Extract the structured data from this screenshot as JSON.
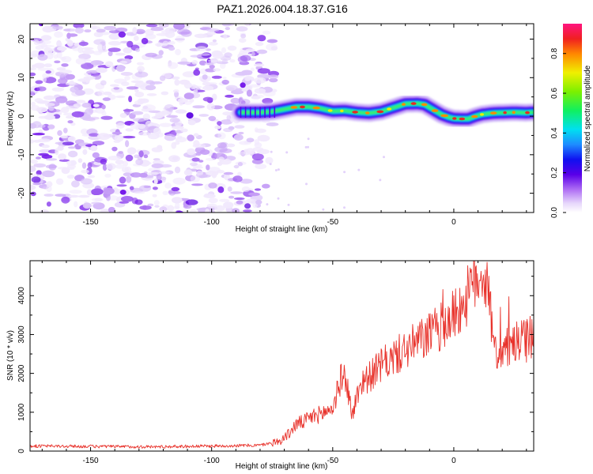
{
  "title": "PAZ1.2026.004.18.37.G16",
  "chart_data": [
    {
      "type": "heatmap",
      "panel": "spectrogram",
      "xlabel": "Height of straight line (km)",
      "ylabel": "Frequency (Hz)",
      "xlim": [
        -175,
        33
      ],
      "ylim": [
        -25,
        24
      ],
      "xticks": [
        -150,
        -100,
        -50,
        0
      ],
      "yticks": [
        -20,
        -10,
        0,
        10,
        20
      ],
      "noise_region_km": [
        -175,
        -78
      ],
      "signal_start_km": -88,
      "signal_track": {
        "x": [
          -88,
          -80,
          -75,
          -70,
          -65,
          -60,
          -55,
          -50,
          -45,
          -40,
          -35,
          -30,
          -25,
          -20,
          -15,
          -12,
          -8,
          -5,
          -2,
          0,
          3,
          6,
          9,
          12,
          16,
          20,
          25,
          30,
          33
        ],
        "freq_hz": [
          1.0,
          1.0,
          1.2,
          1.8,
          2.4,
          2.4,
          2.0,
          1.3,
          1.4,
          1.0,
          0.8,
          1.2,
          2.2,
          3.2,
          3.3,
          3.0,
          1.5,
          0.4,
          -0.3,
          -0.6,
          -0.7,
          -0.7,
          0.0,
          0.5,
          0.8,
          0.9,
          1.0,
          0.9,
          1.0
        ]
      },
      "colorbar": {
        "label": "Normalized spectral amplitude",
        "range": [
          0.0,
          0.95
        ],
        "ticks": [
          "0.0",
          "0.2",
          "0.4",
          "0.6",
          "0.8"
        ]
      }
    },
    {
      "type": "line",
      "panel": "snr",
      "xlabel": "Height of straight line (km)",
      "ylabel": "SNR (10 * v/v)",
      "xlim": [
        -175,
        33
      ],
      "ylim": [
        0,
        4900
      ],
      "xticks": [
        -150,
        -100,
        -50,
        0
      ],
      "yticks": [
        0,
        1000,
        2000,
        3000,
        4000
      ],
      "series": [
        {
          "name": "SNR",
          "color": "#e8312a",
          "x": [
            -175,
            -150,
            -125,
            -100,
            -80,
            -72,
            -68,
            -65,
            -62,
            -58,
            -55,
            -50,
            -46,
            -44,
            -42,
            -40,
            -38,
            -35,
            -30,
            -25,
            -20,
            -15,
            -10,
            -5,
            0,
            5,
            8,
            11,
            12,
            14,
            15,
            16,
            20,
            25,
            30,
            33
          ],
          "y": [
            130,
            120,
            110,
            130,
            150,
            250,
            450,
            700,
            750,
            900,
            950,
            1100,
            2000,
            1700,
            900,
            1400,
            1800,
            1900,
            2200,
            2400,
            2600,
            2800,
            3000,
            3200,
            3500,
            3900,
            4300,
            4650,
            4500,
            4300,
            4200,
            2600,
            2550,
            2750,
            2850,
            2950
          ]
        }
      ]
    }
  ]
}
